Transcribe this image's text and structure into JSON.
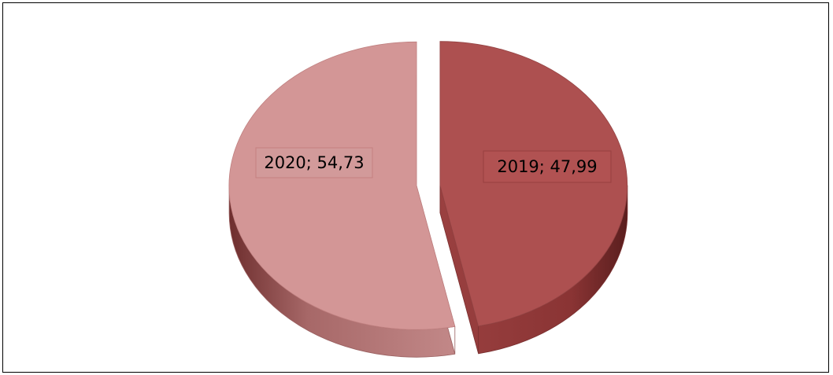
{
  "chart_data": {
    "type": "pie",
    "title": "",
    "three_d": true,
    "exploded": true,
    "categories": [
      "2019",
      "2020"
    ],
    "values": [
      47.99,
      54.73
    ],
    "data_labels": [
      "2019; 47,99",
      "2020; 54,73"
    ],
    "colors": {
      "2019": "#ad5050",
      "2020": "#d39696"
    },
    "legend": "none"
  }
}
